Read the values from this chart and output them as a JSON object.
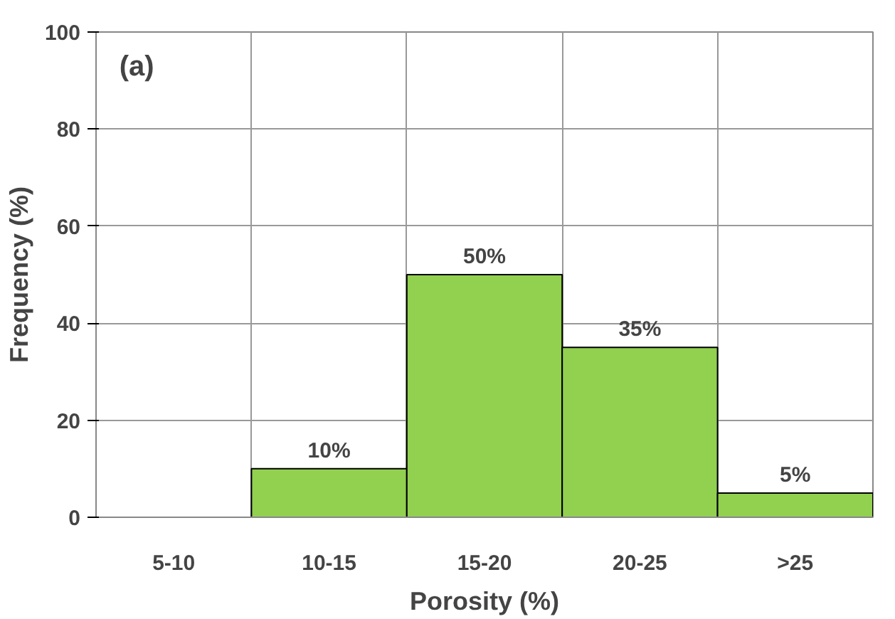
{
  "chart_data": {
    "type": "bar",
    "xlabel": "Porosity (%)",
    "ylabel": "Frequency (%)",
    "categories": [
      "5-10",
      "10-15",
      "15-20",
      "20-25",
      ">25"
    ],
    "values": [
      0,
      10,
      50,
      35,
      5
    ],
    "value_labels": [
      null,
      "10%",
      "50%",
      "35%",
      "5%"
    ],
    "color": "#92d050",
    "ylim": [
      0,
      100
    ],
    "yticks": [
      0,
      20,
      40,
      60,
      80,
      100
    ],
    "grid": true,
    "annotations": [
      "(a)"
    ]
  }
}
